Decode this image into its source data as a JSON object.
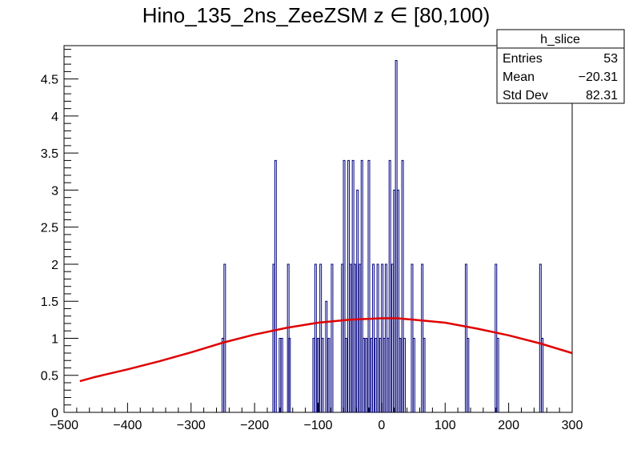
{
  "chart_data": {
    "type": "bar",
    "title": "Hino_135_2ns_ZeeZSM z  ∈ [80,100)",
    "xlabel": "",
    "ylabel": "",
    "xlim": [
      -500,
      300
    ],
    "ylim": [
      0,
      4.95
    ],
    "x_ticks": [
      "−500",
      "−400",
      "−300",
      "−200",
      "−100",
      "0",
      "100",
      "200",
      "300"
    ],
    "x_tick_values": [
      -500,
      -400,
      -300,
      -200,
      -100,
      0,
      100,
      200,
      300
    ],
    "y_ticks": [
      "0",
      "0.5",
      "1",
      "1.5",
      "2",
      "2.5",
      "3",
      "3.5",
      "4",
      "4.5"
    ],
    "y_tick_values": [
      0,
      0.5,
      1,
      1.5,
      2,
      2.5,
      3,
      3.5,
      4,
      4.5
    ],
    "series": [
      {
        "color": "#000080",
        "x": [
          -250,
          -247,
          -170,
          -167,
          -160,
          -157,
          -147,
          -145,
          -107,
          -104,
          -100,
          -96,
          -93,
          -87,
          -83,
          -78,
          -62,
          -59,
          -56,
          -52,
          -49,
          -45,
          -42,
          -38,
          -34,
          -31,
          -28,
          -24,
          -20,
          -16,
          -13,
          -9,
          -6,
          -2,
          1,
          4,
          7,
          10,
          13,
          17,
          20,
          23,
          26,
          29,
          33,
          36,
          48,
          51,
          64,
          67,
          133,
          136,
          180,
          183,
          250,
          253
        ],
        "values": [
          1.0,
          2.0,
          2.0,
          3.4,
          1.0,
          1.0,
          2.0,
          1.0,
          1.0,
          2.0,
          1.0,
          2.0,
          1.0,
          1.5,
          1.0,
          2.0,
          2.0,
          3.4,
          1.0,
          3.4,
          2.0,
          3.4,
          2.0,
          3.0,
          2.0,
          3.4,
          1.0,
          1.0,
          3.4,
          1.0,
          2.0,
          1.0,
          2.0,
          1.0,
          2.0,
          1.0,
          2.0,
          1.0,
          3.4,
          2.0,
          3.0,
          4.75,
          3.0,
          1.0,
          3.4,
          1.0,
          2.0,
          1.0,
          2.0,
          1.0,
          2.0,
          1.0,
          2.0,
          1.0,
          2.0,
          1.0
        ]
      },
      {
        "type": "line",
        "color": "#e00000",
        "x": [
          -475,
          -450,
          -400,
          -350,
          -300,
          -250,
          -200,
          -150,
          -100,
          -50,
          0,
          25,
          50,
          100,
          150,
          200,
          250,
          300
        ],
        "values": [
          0.42,
          0.48,
          0.58,
          0.69,
          0.81,
          0.94,
          1.05,
          1.14,
          1.21,
          1.25,
          1.27,
          1.27,
          1.25,
          1.21,
          1.13,
          1.04,
          0.93,
          0.8
        ]
      }
    ],
    "stats_box": {
      "name": "h_slice",
      "rows": [
        {
          "label": "Entries",
          "value": "53"
        },
        {
          "label": "Mean",
          "value": "−20.31"
        },
        {
          "label": "Std Dev",
          "value": "82.31"
        }
      ]
    },
    "grid": false,
    "legend_position": "top-right"
  }
}
